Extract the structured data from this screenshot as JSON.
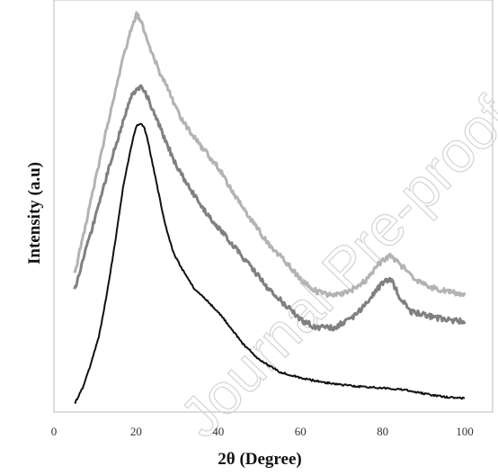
{
  "watermark": "Journal Pre-proof",
  "chart_data": {
    "type": "line",
    "title": "",
    "xlabel": "2θ (Degree)",
    "ylabel": "Intensity (a.u)",
    "xlim": [
      0,
      100
    ],
    "xticks": [
      0,
      20,
      40,
      60,
      80,
      100
    ],
    "y_tick_labels_shown": false,
    "grid": false,
    "legend": "none",
    "series": [
      {
        "color": "#b3b3b3",
        "x": [
          5,
          8,
          11,
          14,
          17,
          19,
          20,
          21,
          22,
          24,
          26,
          28,
          30,
          33,
          36,
          40,
          44,
          48,
          52,
          56,
          60,
          64,
          68,
          72,
          76,
          79,
          82,
          85,
          88,
          92,
          96,
          100
        ],
        "y": [
          0.34,
          0.48,
          0.62,
          0.76,
          0.89,
          0.96,
          0.99,
          0.98,
          0.95,
          0.89,
          0.84,
          0.8,
          0.75,
          0.7,
          0.66,
          0.61,
          0.54,
          0.48,
          0.42,
          0.38,
          0.33,
          0.3,
          0.29,
          0.3,
          0.33,
          0.37,
          0.39,
          0.36,
          0.33,
          0.31,
          0.3,
          0.295
        ]
      },
      {
        "color": "#808080",
        "x": [
          5,
          8,
          11,
          14,
          17,
          19,
          21,
          22,
          23,
          25,
          27,
          30,
          33,
          36,
          40,
          44,
          48,
          52,
          56,
          60,
          64,
          68,
          72,
          76,
          79,
          81,
          82,
          84,
          87,
          91,
          95,
          100
        ],
        "y": [
          0.3,
          0.41,
          0.52,
          0.63,
          0.73,
          0.79,
          0.81,
          0.8,
          0.78,
          0.73,
          0.68,
          0.61,
          0.56,
          0.51,
          0.46,
          0.41,
          0.36,
          0.31,
          0.27,
          0.23,
          0.21,
          0.21,
          0.23,
          0.27,
          0.31,
          0.33,
          0.33,
          0.29,
          0.25,
          0.24,
          0.23,
          0.225
        ]
      },
      {
        "color": "#111111",
        "x": [
          5,
          7,
          9,
          11,
          13,
          15,
          17,
          19,
          20,
          21,
          22,
          23,
          25,
          27,
          29,
          31,
          34,
          37,
          40,
          43,
          46,
          50,
          55,
          60,
          65,
          70,
          75,
          80,
          85,
          88,
          92,
          96,
          100
        ],
        "y": [
          0.02,
          0.06,
          0.12,
          0.19,
          0.3,
          0.43,
          0.57,
          0.67,
          0.71,
          0.72,
          0.71,
          0.67,
          0.57,
          0.47,
          0.4,
          0.36,
          0.31,
          0.28,
          0.25,
          0.21,
          0.17,
          0.13,
          0.1,
          0.085,
          0.075,
          0.068,
          0.063,
          0.06,
          0.056,
          0.05,
          0.042,
          0.037,
          0.034
        ]
      }
    ]
  }
}
